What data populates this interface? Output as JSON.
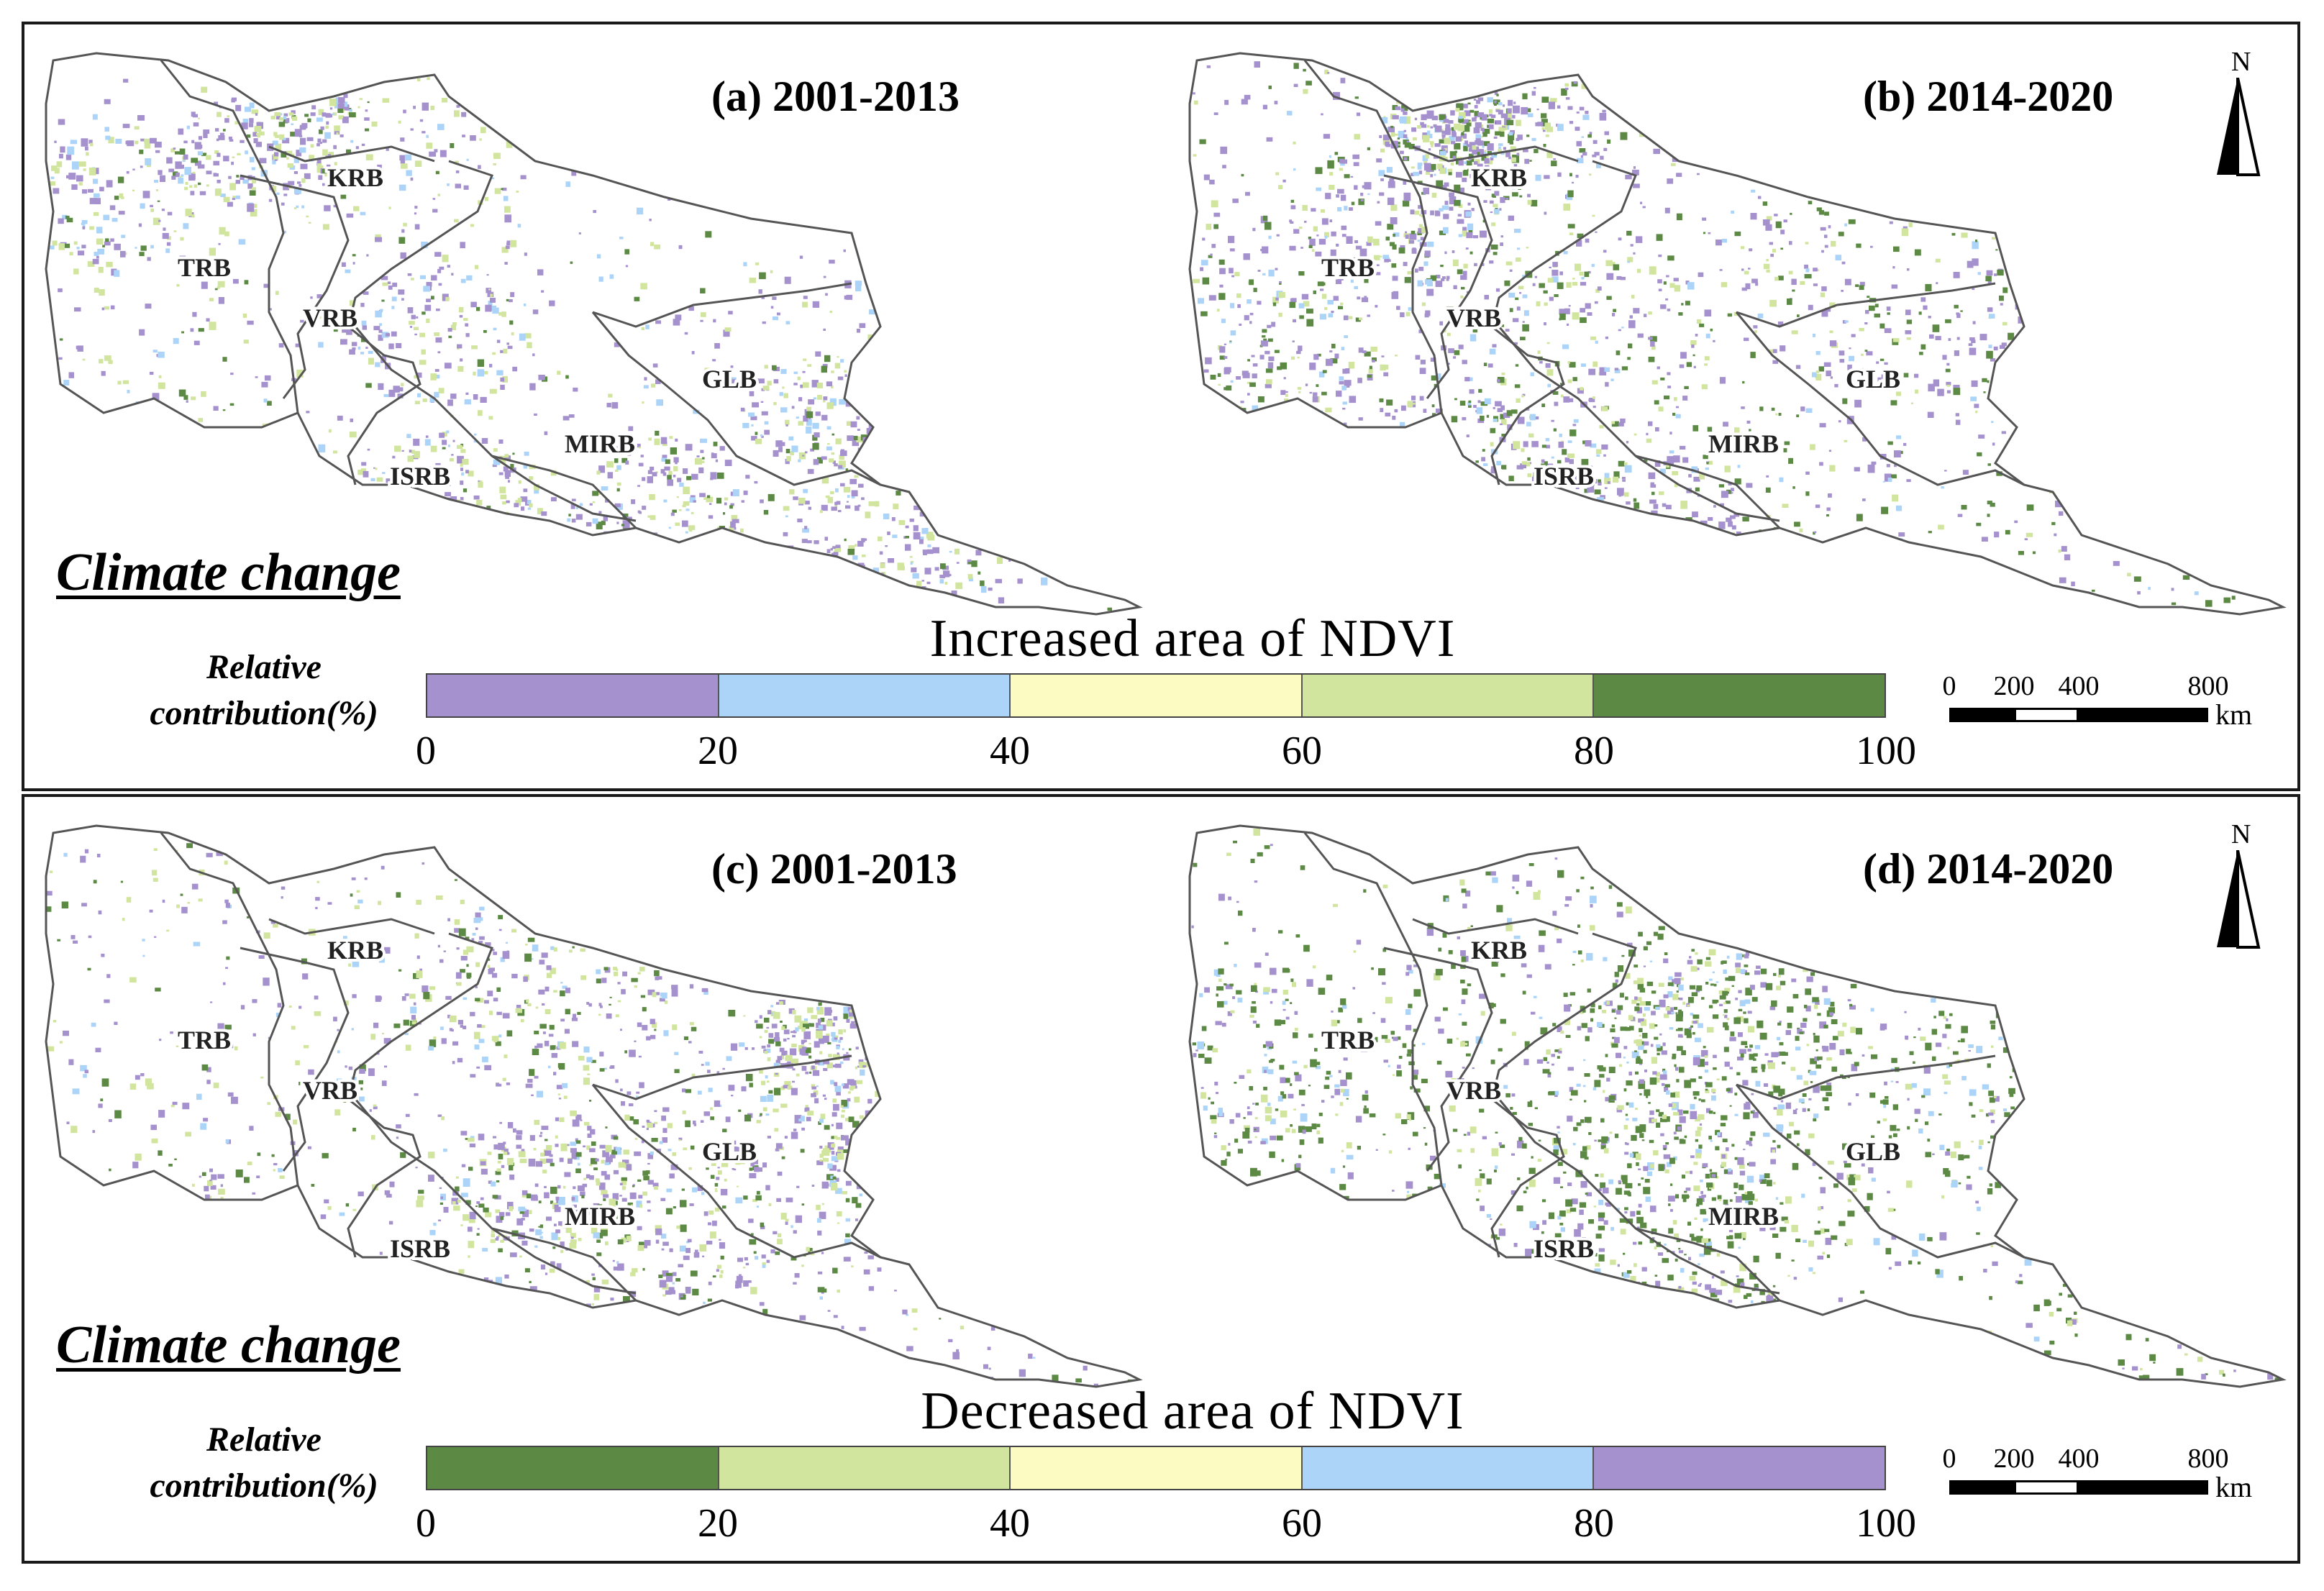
{
  "colors": {
    "purple": "#a591cd",
    "blue": "#abd4f8",
    "yellow": "#fbfbc2",
    "lightgreen": "#d2e59e",
    "darkgreen": "#5c8a44",
    "border": "#555555"
  },
  "basin_labels": [
    "KRB",
    "TRB",
    "VRB",
    "GLB",
    "MIRB",
    "ISRB"
  ],
  "panels": [
    {
      "title": "(a) 2001-2013",
      "dominant": [
        "purple",
        "lightgreen",
        "blue",
        "darkgreen"
      ],
      "density": 0.55
    },
    {
      "title": "(b) 2014-2020",
      "dominant": [
        "purple",
        "darkgreen",
        "lightgreen",
        "blue"
      ],
      "density": 0.75
    },
    {
      "title": "(c) 2001-2013",
      "dominant": [
        "purple",
        "lightgreen",
        "darkgreen",
        "blue"
      ],
      "density": 0.7
    },
    {
      "title": "(d) 2014-2020",
      "dominant": [
        "darkgreen",
        "purple",
        "lightgreen",
        "blue"
      ],
      "density": 0.5
    }
  ],
  "north_label": "N",
  "climate_label": "Climate change",
  "legends": [
    {
      "title": "Increased area of NDVI",
      "relative_label_line1": "Relative",
      "relative_label_line2": "contribution(%)",
      "segments": [
        "#a591cd",
        "#abd4f8",
        "#fbfbc2",
        "#d2e59e",
        "#5c8a44"
      ],
      "ticks": [
        "0",
        "20",
        "40",
        "60",
        "80",
        "100"
      ]
    },
    {
      "title": "Decreased area of NDVI",
      "relative_label_line1": "Relative",
      "relative_label_line2": "contribution(%)",
      "segments": [
        "#5c8a44",
        "#d2e59e",
        "#fbfbc2",
        "#abd4f8",
        "#a591cd"
      ],
      "ticks": [
        "0",
        "20",
        "40",
        "60",
        "80",
        "100"
      ]
    }
  ],
  "scale_bar": {
    "labels": [
      "0",
      "200",
      "400",
      "800"
    ],
    "unit": "km"
  }
}
